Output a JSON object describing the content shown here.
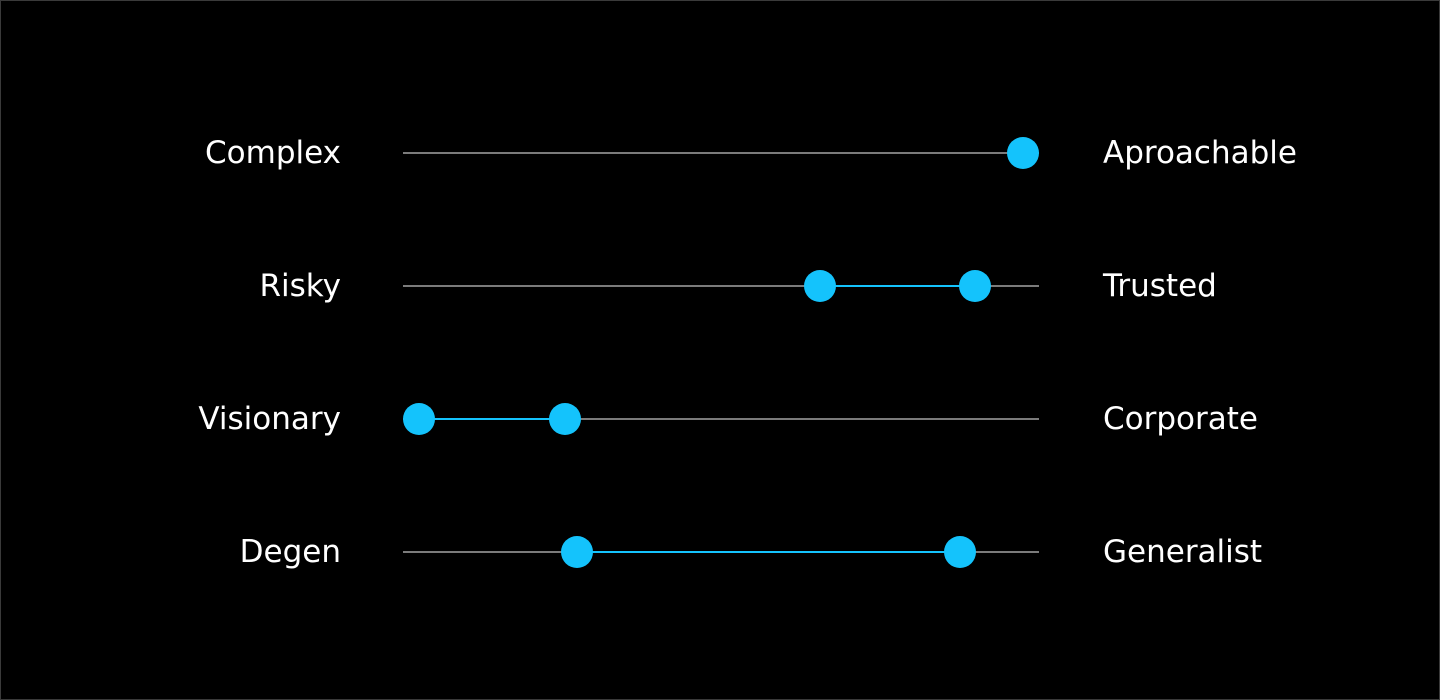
{
  "accent_color": "#14c3fc",
  "track_color": "#7b7b7b",
  "scales": [
    {
      "left_label": "Complex",
      "right_label": "Aproachable",
      "range": [
        0.975,
        0.975
      ]
    },
    {
      "left_label": "Risky",
      "right_label": "Trusted",
      "range": [
        0.655,
        0.9
      ]
    },
    {
      "left_label": "Visionary",
      "right_label": "Corporate",
      "range": [
        0.025,
        0.255
      ]
    },
    {
      "left_label": "Degen",
      "right_label": "Generalist",
      "range": [
        0.273,
        0.875
      ]
    }
  ]
}
